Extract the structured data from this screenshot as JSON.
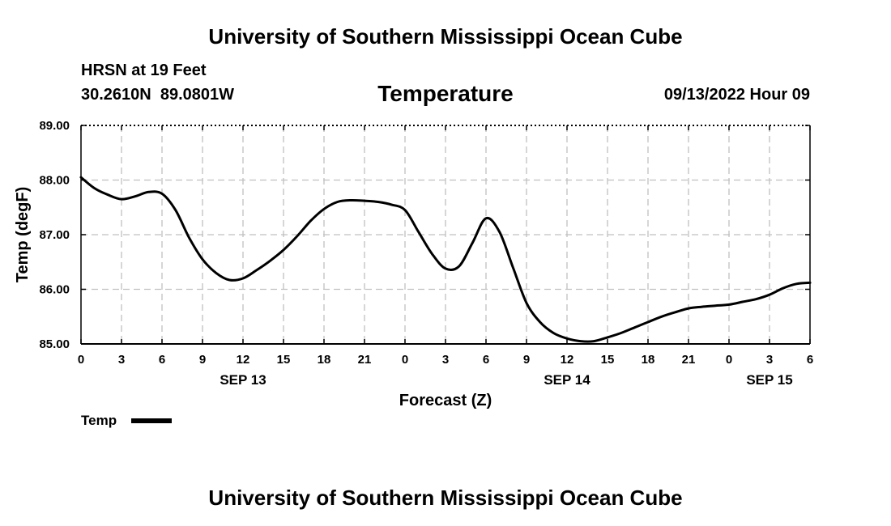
{
  "header": {
    "title": "University of Southern Mississippi Ocean Cube",
    "station": "HRSN at 19 Feet",
    "coords": "30.2610N  89.0801W",
    "datetime": "09/13/2022 Hour 09"
  },
  "footer": {
    "title": "University of Southern Mississippi Ocean Cube"
  },
  "legend": {
    "label": "Temp"
  },
  "colors": {
    "line": "#000000",
    "grid": "#c0c0c0"
  },
  "chart_data": {
    "type": "line",
    "title": "Temperature",
    "xlabel": "Forecast (Z)",
    "ylabel": "Temp (degF)",
    "xlim": [
      0,
      54
    ],
    "ylim": [
      85,
      89
    ],
    "yticks": [
      85,
      86,
      87,
      88,
      89
    ],
    "ytick_labels": [
      "85.00",
      "86.00",
      "87.00",
      "88.00",
      "89.00"
    ],
    "xticks": [
      0,
      3,
      6,
      9,
      12,
      15,
      18,
      21,
      24,
      27,
      30,
      33,
      36,
      39,
      42,
      45,
      48,
      51,
      54
    ],
    "xtick_labels": [
      "0",
      "3",
      "6",
      "9",
      "12",
      "15",
      "18",
      "21",
      "0",
      "3",
      "6",
      "9",
      "12",
      "15",
      "18",
      "21",
      "0",
      "3",
      "6"
    ],
    "date_labels": [
      {
        "x": 12,
        "label": "SEP 13"
      },
      {
        "x": 36,
        "label": "SEP 14"
      },
      {
        "x": 51,
        "label": "SEP 15"
      }
    ],
    "grid": true,
    "series": [
      {
        "name": "Temp",
        "x": [
          0,
          1,
          2,
          3,
          4,
          5,
          6,
          7,
          8,
          9,
          10,
          11,
          12,
          13,
          14,
          15,
          16,
          17,
          18,
          19,
          20,
          21,
          22,
          23,
          24,
          25,
          26,
          27,
          28,
          29,
          30,
          31,
          32,
          33,
          34,
          35,
          36,
          37,
          38,
          39,
          40,
          41,
          42,
          43,
          44,
          45,
          46,
          47,
          48,
          49,
          50,
          51,
          52,
          53,
          54
        ],
        "values": [
          88.05,
          87.85,
          87.73,
          87.65,
          87.7,
          87.78,
          87.75,
          87.45,
          86.95,
          86.55,
          86.3,
          86.17,
          86.2,
          86.35,
          86.52,
          86.72,
          86.97,
          87.25,
          87.47,
          87.6,
          87.63,
          87.62,
          87.6,
          87.55,
          87.45,
          87.05,
          86.65,
          86.38,
          86.42,
          86.85,
          87.3,
          87.05,
          86.4,
          85.75,
          85.4,
          85.2,
          85.1,
          85.05,
          85.05,
          85.12,
          85.2,
          85.3,
          85.4,
          85.5,
          85.58,
          85.65,
          85.68,
          85.7,
          85.72,
          85.77,
          85.82,
          85.9,
          86.02,
          86.1,
          86.12
        ]
      }
    ]
  }
}
